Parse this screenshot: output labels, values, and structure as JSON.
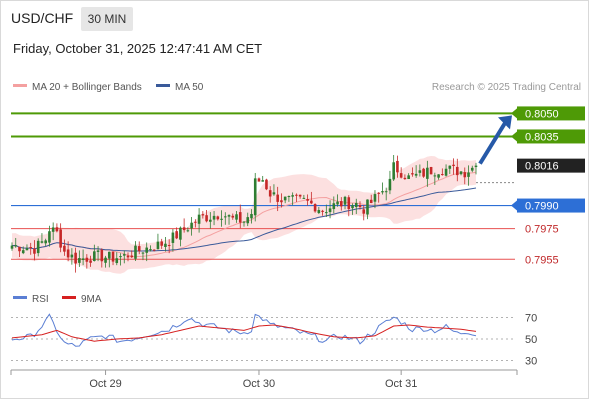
{
  "header": {
    "symbol": "USD/CHF",
    "timeframe": "30 MIN",
    "datetime": "Friday, October 31, 2025 12:47:41 AM CET"
  },
  "legend": {
    "ma20_label": "MA 20 + Bollinger Bands",
    "ma50_label": "MA 50",
    "credit": "Research © 2025 Trading Central"
  },
  "colors": {
    "up_candle": "#2e7d32",
    "down_candle": "#c62828",
    "ma20": "#f4a0a0",
    "ma50": "#3a5a9a",
    "bollinger_fill": "#fbdada",
    "target_line": "#4e9a06",
    "support_line": "#2d6fd6",
    "resistance_red": "#e85050",
    "current_price": "#222222",
    "arrow": "#2659a8",
    "rsi": "#5b7fd4",
    "rsi_ma": "#d62020"
  },
  "chart_data": [
    {
      "type": "candlestick",
      "title": "USD/CHF",
      "timeframe": "30 MIN",
      "ylim": [
        0.7935,
        0.8062
      ],
      "x_ticks": [
        "Oct 29",
        "Oct 30",
        "Oct 31"
      ],
      "x_tick_index": [
        25,
        66,
        104
      ],
      "series": [
        {
          "name": "MA 20 + Bollinger Bands",
          "kind": "band+line"
        },
        {
          "name": "MA 50",
          "kind": "line"
        }
      ],
      "close_path": [
        [
          0,
          0.7964
        ],
        [
          6,
          0.7962
        ],
        [
          9,
          0.7968
        ],
        [
          10,
          0.7975
        ],
        [
          12,
          0.7972
        ],
        [
          14,
          0.796
        ],
        [
          17,
          0.7955
        ],
        [
          23,
          0.7957
        ],
        [
          27,
          0.7956
        ],
        [
          30,
          0.7957
        ],
        [
          33,
          0.796
        ],
        [
          37,
          0.7963
        ],
        [
          40,
          0.7965
        ],
        [
          43,
          0.7969
        ],
        [
          47,
          0.7976
        ],
        [
          50,
          0.7982
        ],
        [
          53,
          0.7983
        ],
        [
          56,
          0.7985
        ],
        [
          59,
          0.7981
        ],
        [
          62,
          0.798
        ],
        [
          64,
          0.7985
        ],
        [
          65,
          0.8005
        ],
        [
          67,
          0.8007
        ],
        [
          69,
          0.7998
        ],
        [
          72,
          0.7994
        ],
        [
          75,
          0.7993
        ],
        [
          78,
          0.7993
        ],
        [
          81,
          0.799
        ],
        [
          83,
          0.7987
        ],
        [
          86,
          0.799
        ],
        [
          89,
          0.7992
        ],
        [
          92,
          0.7991
        ],
        [
          94,
          0.7988
        ],
        [
          96,
          0.7992
        ],
        [
          98,
          0.7997
        ],
        [
          101,
          0.8005
        ],
        [
          102,
          0.8015
        ],
        [
          104,
          0.8012
        ],
        [
          106,
          0.8008
        ],
        [
          109,
          0.801
        ],
        [
          112,
          0.8013
        ],
        [
          115,
          0.8014
        ],
        [
          118,
          0.8013
        ],
        [
          121,
          0.8012
        ],
        [
          124,
          0.8016
        ]
      ],
      "levels": [
        {
          "value": 0.805,
          "label": "0.8050",
          "kind": "target"
        },
        {
          "value": 0.8035,
          "label": "0.8035",
          "kind": "target"
        },
        {
          "value": 0.8016,
          "label": "0.8016",
          "kind": "current"
        },
        {
          "value": 0.799,
          "label": "0.7990",
          "kind": "pivot"
        },
        {
          "value": 0.7975,
          "label": "0.7975",
          "kind": "support"
        },
        {
          "value": 0.7955,
          "label": "0.7955",
          "kind": "support"
        }
      ],
      "projection": {
        "from": 0.8016,
        "to": 0.805,
        "direction": "up"
      }
    },
    {
      "type": "line",
      "title": "RSI",
      "ylim": [
        25,
        75
      ],
      "y_ticks": [
        70,
        50,
        30
      ],
      "series": [
        {
          "name": "RSI",
          "points": [
            [
              0,
              50
            ],
            [
              5,
              52
            ],
            [
              8,
              62
            ],
            [
              10,
              70
            ],
            [
              12,
              58
            ],
            [
              14,
              46
            ],
            [
              17,
              43
            ],
            [
              21,
              50
            ],
            [
              25,
              53
            ],
            [
              29,
              48
            ],
            [
              33,
              51
            ],
            [
              37,
              55
            ],
            [
              41,
              58
            ],
            [
              44,
              63
            ],
            [
              47,
              70
            ],
            [
              50,
              65
            ],
            [
              53,
              62
            ],
            [
              56,
              60
            ],
            [
              59,
              57
            ],
            [
              62,
              56
            ],
            [
              64,
              59
            ],
            [
              65,
              72
            ],
            [
              67,
              69
            ],
            [
              69,
              63
            ],
            [
              72,
              61
            ],
            [
              75,
              58
            ],
            [
              78,
              55
            ],
            [
              81,
              52
            ],
            [
              84,
              48
            ],
            [
              87,
              53
            ],
            [
              90,
              51
            ],
            [
              93,
              48
            ],
            [
              96,
              55
            ],
            [
              99,
              63
            ],
            [
              102,
              70
            ],
            [
              104,
              66
            ],
            [
              107,
              59
            ],
            [
              110,
              60
            ],
            [
              113,
              58
            ],
            [
              116,
              61
            ],
            [
              119,
              55
            ],
            [
              122,
              57
            ],
            [
              124,
              55
            ]
          ]
        },
        {
          "name": "9MA",
          "points": [
            [
              0,
              51
            ],
            [
              8,
              54
            ],
            [
              12,
              58
            ],
            [
              16,
              52
            ],
            [
              22,
              48
            ],
            [
              28,
              50
            ],
            [
              34,
              51
            ],
            [
              40,
              54
            ],
            [
              45,
              58
            ],
            [
              50,
              62
            ],
            [
              56,
              60
            ],
            [
              62,
              58
            ],
            [
              66,
              62
            ],
            [
              70,
              63
            ],
            [
              75,
              60
            ],
            [
              80,
              56
            ],
            [
              86,
              52
            ],
            [
              92,
              51
            ],
            [
              97,
              53
            ],
            [
              102,
              62
            ],
            [
              106,
              63
            ],
            [
              111,
              61
            ],
            [
              116,
              60
            ],
            [
              120,
              59
            ],
            [
              124,
              57
            ]
          ]
        }
      ]
    }
  ]
}
